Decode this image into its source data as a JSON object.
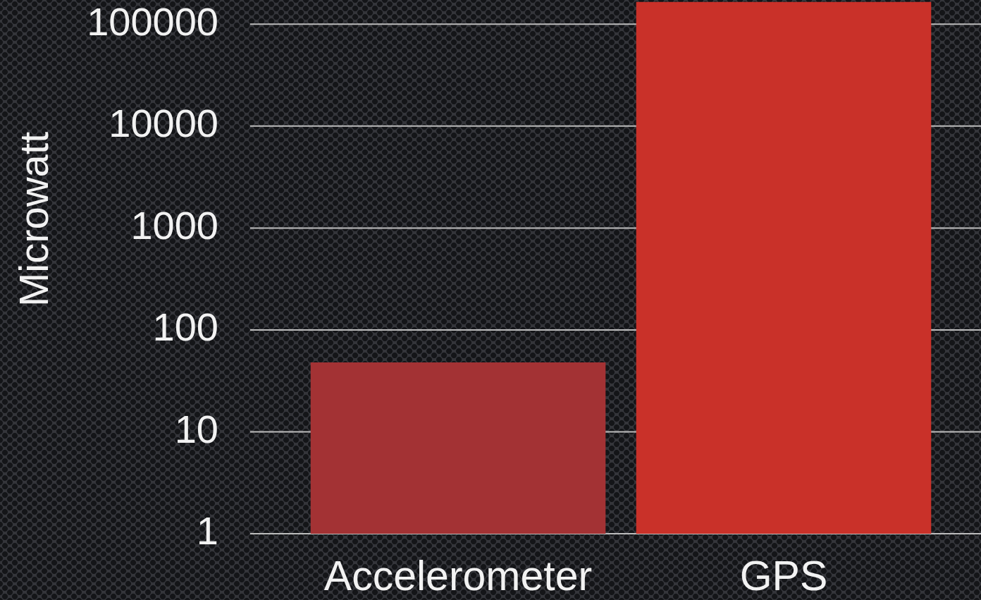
{
  "chart_data": {
    "type": "bar",
    "ylabel": "Microwatt",
    "categories": [
      "Accelerometer",
      "GPS"
    ],
    "values": [
      48,
      165000
    ],
    "colors": [
      "#a33234",
      "#c93129"
    ],
    "log": true,
    "ylim": [
      1,
      170000
    ],
    "yticks": [
      1,
      10,
      100,
      1000,
      10000,
      100000
    ],
    "grid": "y"
  }
}
